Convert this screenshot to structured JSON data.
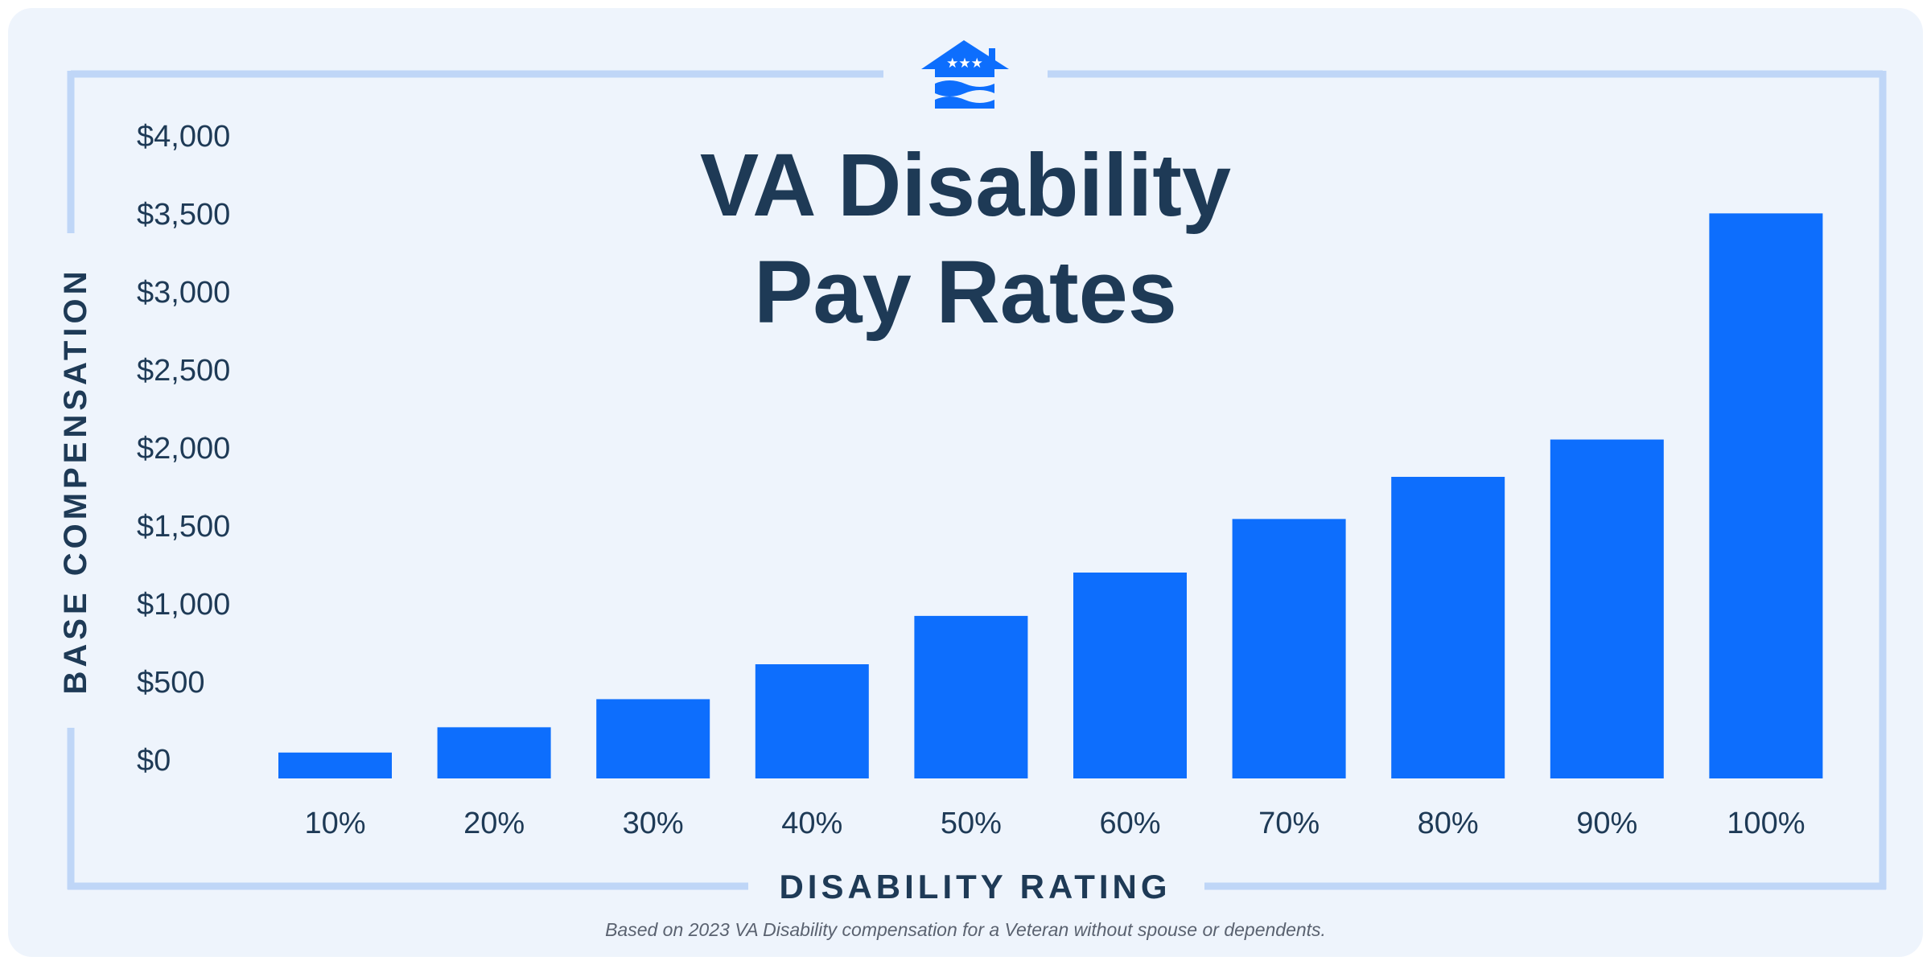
{
  "logo": {
    "icon": "house-stars-waves-icon",
    "color": "#0d6efd"
  },
  "chart_data": {
    "type": "bar",
    "title": [
      "VA Disability",
      "Pay Rates"
    ],
    "xlabel": "DISABILITY RATING",
    "ylabel": "BASE COMPENSATION",
    "categories": [
      "10%",
      "20%",
      "30%",
      "40%",
      "50%",
      "60%",
      "70%",
      "80%",
      "90%",
      "100%"
    ],
    "values": [
      165.92,
      327.99,
      508.05,
      731.86,
      1041.82,
      1319.65,
      1663.06,
      1933.15,
      2172.39,
      3621.95
    ],
    "ylim": [
      0,
      4000
    ],
    "yticks": [
      "$0",
      "$500",
      "$1,000",
      "$1,500",
      "$2,000",
      "$2,500",
      "$3,000",
      "$3,500",
      "$4,000"
    ],
    "ytick_values": [
      0,
      500,
      1000,
      1500,
      2000,
      2500,
      3000,
      3500,
      4000
    ],
    "grid": false,
    "bar_color": "#0d6efd",
    "text_color": "#1e3a56",
    "frame_color": "#bfd6f7"
  },
  "footnote": "Based on 2023 VA Disability compensation for a Veteran without spouse or dependents."
}
